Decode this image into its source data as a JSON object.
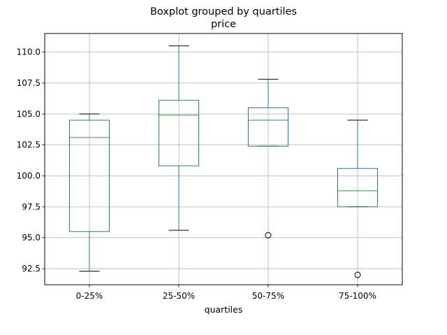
{
  "chart_data": {
    "type": "boxplot",
    "title": "Boxplot grouped by quartiles",
    "subtitle": "price",
    "xlabel": "quartiles",
    "ylabel": "",
    "ylim": [
      91.2,
      111.5
    ],
    "yticks": [
      "92.5",
      "95.0",
      "97.5",
      "100.0",
      "102.5",
      "105.0",
      "107.5",
      "110.0"
    ],
    "grid": true,
    "categories": [
      "0-25%",
      "25-50%",
      "50-75%",
      "75-100%"
    ],
    "boxes": [
      {
        "name": "0-25%",
        "whisker_low": 92.3,
        "q1": 95.5,
        "median": 103.1,
        "q3": 104.5,
        "whisker_high": 105.0,
        "outliers": []
      },
      {
        "name": "25-50%",
        "whisker_low": 95.6,
        "q1": 100.8,
        "median": 104.9,
        "q3": 106.1,
        "whisker_high": 110.5,
        "outliers": []
      },
      {
        "name": "50-75%",
        "whisker_low": 102.4,
        "q1": 102.4,
        "median": 104.5,
        "q3": 105.5,
        "whisker_high": 107.8,
        "outliers": [
          95.2
        ]
      },
      {
        "name": "75-100%",
        "whisker_low": 97.5,
        "q1": 97.5,
        "median": 98.8,
        "q3": 100.6,
        "whisker_high": 104.5,
        "outliers": [
          92.0
        ]
      }
    ],
    "colors": {
      "box": "#1f77b4",
      "median": "#2ca02c",
      "whisker_cap": "#000000",
      "grid": "#b0b0b0",
      "outlier": "#000000"
    }
  }
}
